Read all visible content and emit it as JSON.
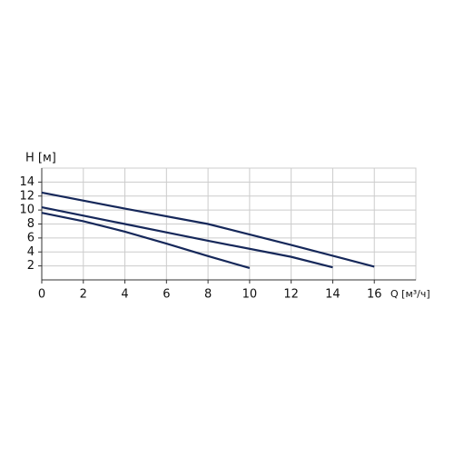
{
  "chart_data": {
    "type": "line",
    "y_label": "H [м]",
    "x_label": "Q [м³/ч]",
    "xlim": [
      0,
      18
    ],
    "xticks": [
      0,
      2,
      4,
      6,
      8,
      10,
      12,
      14,
      16
    ],
    "ylim": [
      0,
      16
    ],
    "yticks": [
      2,
      4,
      6,
      8,
      10,
      12,
      14
    ],
    "grid": true,
    "series": [
      {
        "color": "#16285a",
        "x": [
          0,
          4,
          8,
          12,
          16
        ],
        "values": [
          12.5,
          10.2,
          8.0,
          5.0,
          1.9
        ]
      },
      {
        "color": "#16285a",
        "x": [
          0,
          4,
          8,
          12,
          14
        ],
        "values": [
          10.4,
          8.0,
          5.6,
          3.3,
          1.8
        ]
      },
      {
        "color": "#16285a",
        "x": [
          0,
          2,
          4,
          6,
          8,
          10
        ],
        "values": [
          9.6,
          8.4,
          6.9,
          5.2,
          3.4,
          1.7
        ]
      }
    ]
  }
}
